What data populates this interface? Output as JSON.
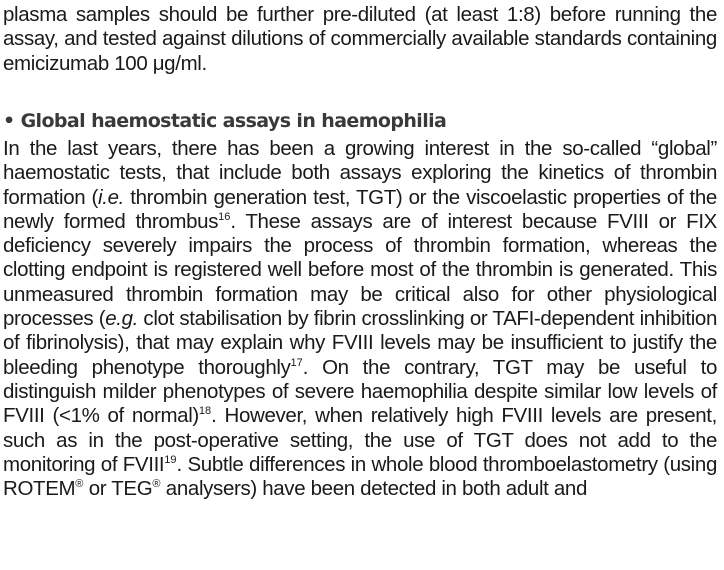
{
  "para1": {
    "text": "plasma samples should be further pre-diluted (at least 1:8) before running the assay, and tested against dilutions of commercially available standards containing emicizumab 100 μg/ml."
  },
  "section": {
    "bullet": "•",
    "title": "Global haemostatic assays in haemophilia"
  },
  "para2": {
    "s01": "In the last years, there has been a growing interest in the so-called “global” haemostatic tests, that include both assays exploring the kinetics of thrombin formation (",
    "s02": "i.e.",
    "s03": " thrombin generation test, TGT) or the viscoelastic properties of the newly formed thrombus",
    "r1": "16",
    "s04": ". These assays are of interest because FVIII or FIX deficiency severely impairs the process of thrombin formation, whereas the clotting endpoint is registered well before most of the thrombin is generated. This unmeasured thrombin formation may be critical also for other physiological processes (",
    "s05": "e.g.",
    "s06": " clot stabilisation by fibrin crosslinking or TAFI-dependent inhibition of fibrinolysis), that may explain why FVIII levels may be insufficient to justify the bleeding phenotype thoroughly",
    "r2": "17",
    "s07": ". On the contrary, TGT may be useful to distinguish milder phenotypes of severe haemophilia despite similar low levels of FVIII (<1% of normal)",
    "r3": "18",
    "s08": ". However, when relatively high FVIII levels are present, such as in the post-operative setting, the use of TGT does not add to the monitoring of FVIII",
    "r4": "19",
    "s09": ". Subtle differences in whole blood thromboelastometry (using ROTEM",
    "reg1": "®",
    "s10": " or TEG",
    "reg2": "®",
    "s11": " analysers) have been detected in both adult and"
  }
}
